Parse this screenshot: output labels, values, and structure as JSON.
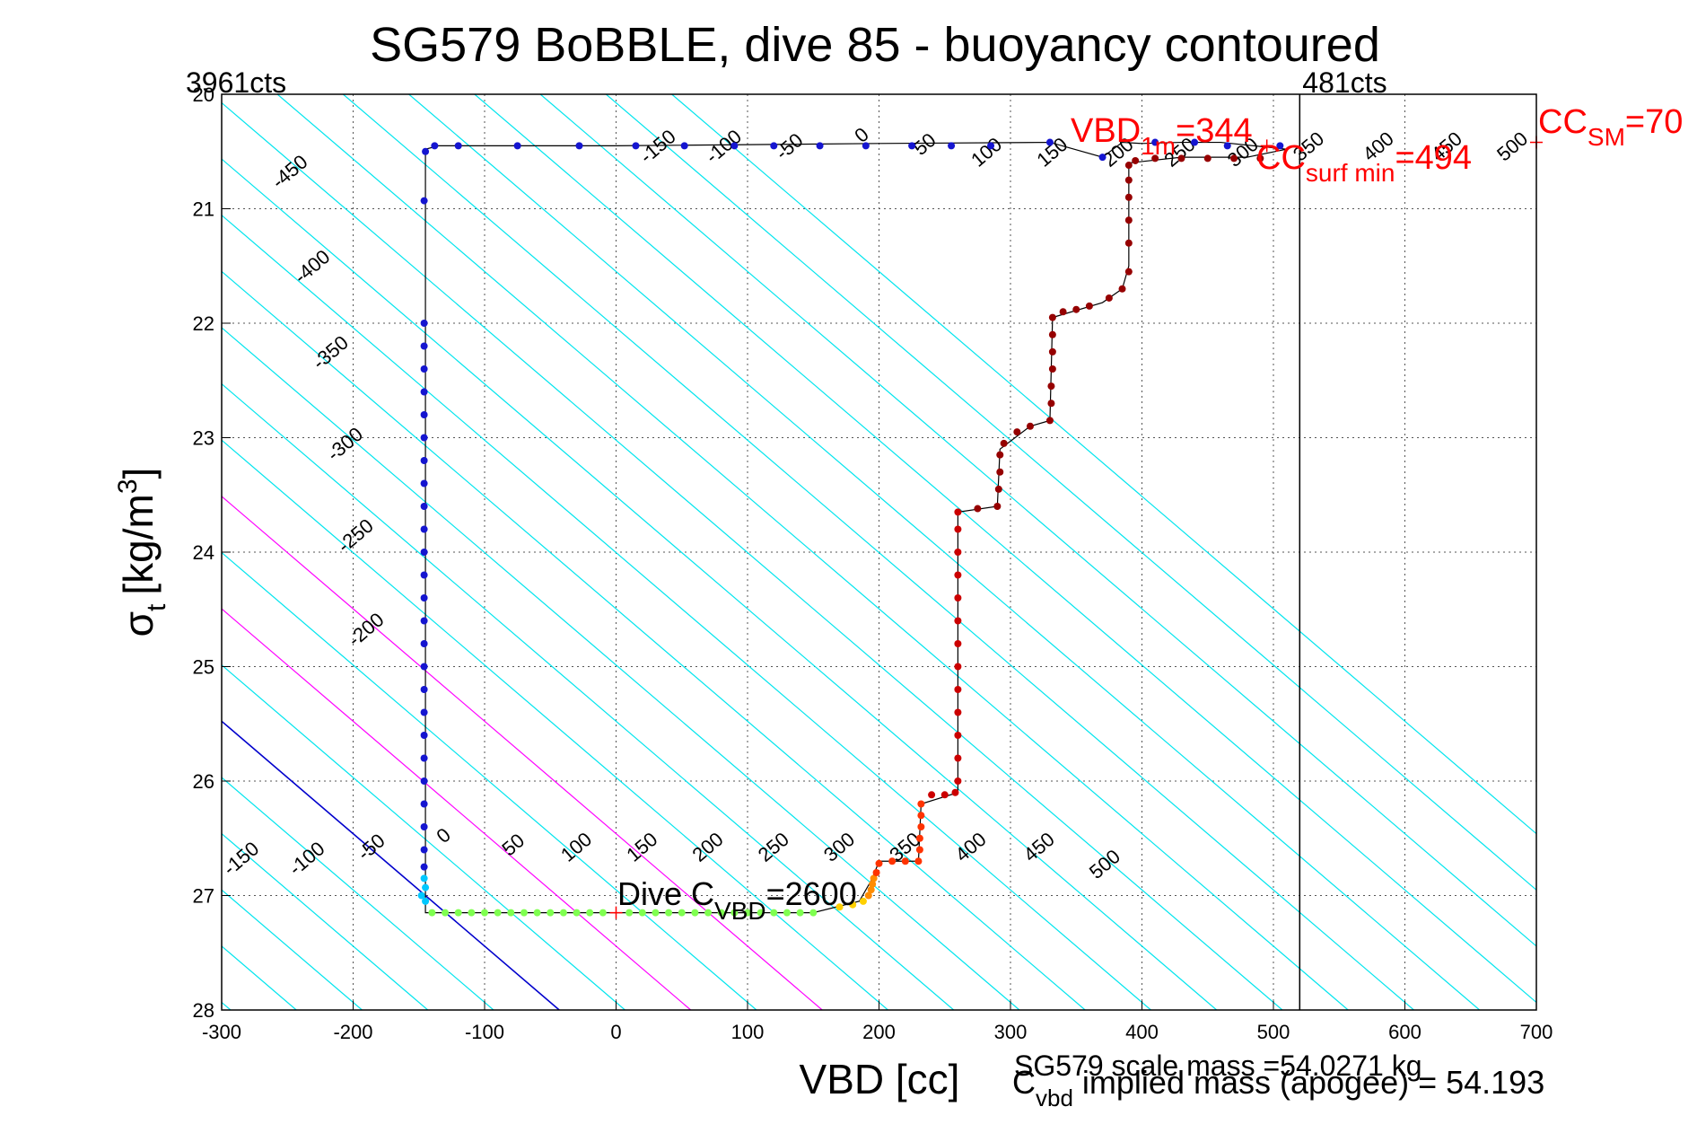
{
  "chart_data": {
    "type": "scatter",
    "title": "SG579 BoBBLE, dive 85 - buoyancy contoured",
    "xlabel": "VBD [cc]",
    "ylabel_main": "σ",
    "ylabel_sub": "t",
    "ylabel_units": "[kg/m",
    "ylabel_sup": "3",
    "ylabel_close": "]",
    "xlim": [
      -300,
      700
    ],
    "ylim": [
      20,
      28
    ],
    "y_reversed": true,
    "grid": true,
    "xticks": [
      -300,
      -200,
      -100,
      0,
      100,
      200,
      300,
      400,
      500,
      600,
      700
    ],
    "yticks": [
      20,
      21,
      22,
      23,
      24,
      25,
      26,
      27,
      28
    ],
    "tick_labels_x": [
      "-300",
      "-200",
      "-100",
      "0",
      "100",
      "200",
      "300",
      "400",
      "500",
      "600",
      "700"
    ],
    "tick_labels_y": [
      "20",
      "21",
      "22",
      "23",
      "24",
      "25",
      "26",
      "27",
      "28"
    ],
    "buoyancy_contours": {
      "levels": [
        -450,
        -400,
        -350,
        -300,
        -250,
        -200,
        -150,
        -100,
        -50,
        0,
        50,
        100,
        150,
        200,
        250,
        300,
        350,
        400,
        450,
        500
      ],
      "slope_cc_per_sigma": 101.8,
      "zero_at_sigma27": -145,
      "spacing_cc": 50,
      "color_default": "#00e5ee",
      "color_zero": "#0000cc",
      "magenta_levels": [
        100,
        200
      ],
      "color_magenta": "#ff00ff",
      "upper_labels": [
        {
          "text": "-450",
          "x": -245,
          "y": 20.72
        },
        {
          "text": "-400",
          "x": -228,
          "y": 21.55
        },
        {
          "text": "-350",
          "x": -214,
          "y": 22.3
        },
        {
          "text": "-300",
          "x": -203,
          "y": 23.1
        },
        {
          "text": "-250",
          "x": -195,
          "y": 23.9
        },
        {
          "text": "-200",
          "x": -187,
          "y": 24.72
        },
        {
          "text": "-150",
          "x": 35,
          "y": 20.5
        },
        {
          "text": "-100",
          "x": 85,
          "y": 20.5
        },
        {
          "text": "-50",
          "x": 135,
          "y": 20.5
        },
        {
          "text": "0",
          "x": 190,
          "y": 20.4
        },
        {
          "text": "50",
          "x": 238,
          "y": 20.48
        },
        {
          "text": "100",
          "x": 285,
          "y": 20.55
        },
        {
          "text": "150",
          "x": 335,
          "y": 20.55
        },
        {
          "text": "200",
          "x": 385,
          "y": 20.55
        },
        {
          "text": "250",
          "x": 432,
          "y": 20.55
        },
        {
          "text": "300",
          "x": 480,
          "y": 20.55
        },
        {
          "text": "350",
          "x": 530,
          "y": 20.5
        },
        {
          "text": "400",
          "x": 583,
          "y": 20.5
        },
        {
          "text": "450",
          "x": 635,
          "y": 20.5
        },
        {
          "text": "500",
          "x": 685,
          "y": 20.5
        }
      ],
      "lower_labels": [
        {
          "text": "-150",
          "x": -282,
          "y": 26.72
        },
        {
          "text": "-100",
          "x": -232,
          "y": 26.72
        },
        {
          "text": "-50",
          "x": -183,
          "y": 26.62
        },
        {
          "text": "0",
          "x": -128,
          "y": 26.52
        },
        {
          "text": "50",
          "x": -75,
          "y": 26.6
        },
        {
          "text": "100",
          "x": -27,
          "y": 26.62
        },
        {
          "text": "150",
          "x": 23,
          "y": 26.62
        },
        {
          "text": "200",
          "x": 73,
          "y": 26.62
        },
        {
          "text": "250",
          "x": 123,
          "y": 26.62
        },
        {
          "text": "300",
          "x": 173,
          "y": 26.62
        },
        {
          "text": "350",
          "x": 223,
          "y": 26.62
        },
        {
          "text": "400",
          "x": 273,
          "y": 26.62
        },
        {
          "text": "450",
          "x": 325,
          "y": 26.62
        },
        {
          "text": "500",
          "x": 375,
          "y": 26.77
        }
      ]
    },
    "counts_lines": {
      "left": {
        "label": "3961cts",
        "x": -300
      },
      "right": {
        "label": "481cts",
        "x": 520
      }
    },
    "trajectory_line": [
      [
        -145,
        20.48
      ],
      [
        -145,
        27.05
      ],
      [
        -145,
        27.15
      ],
      [
        150,
        27.15
      ],
      [
        185,
        27.05
      ],
      [
        195,
        26.85
      ],
      [
        200,
        26.7
      ],
      [
        230,
        26.7
      ],
      [
        232,
        26.2
      ],
      [
        260,
        26.1
      ],
      [
        260,
        23.65
      ],
      [
        290,
        23.6
      ],
      [
        292,
        23.1
      ],
      [
        315,
        22.9
      ],
      [
        330,
        22.85
      ],
      [
        332,
        21.95
      ],
      [
        370,
        21.82
      ],
      [
        385,
        21.7
      ],
      [
        390,
        21.5
      ],
      [
        390,
        20.6
      ],
      [
        430,
        20.55
      ],
      [
        480,
        20.55
      ],
      [
        510,
        20.48
      ],
      [
        460,
        20.42
      ],
      [
        430,
        20.42
      ],
      [
        400,
        20.43
      ],
      [
        385,
        20.42
      ],
      [
        370,
        20.55
      ],
      [
        330,
        20.42
      ],
      [
        200,
        20.43
      ],
      [
        0,
        20.45
      ],
      [
        -135,
        20.45
      ],
      [
        -145,
        20.48
      ]
    ],
    "series": [
      {
        "color": "#1515d0",
        "points": [
          [
            -145,
            20.5
          ],
          [
            -138,
            20.45
          ],
          [
            -120,
            20.45
          ],
          [
            -75,
            20.45
          ],
          [
            -28,
            20.45
          ],
          [
            15,
            20.45
          ],
          [
            52,
            20.45
          ],
          [
            90,
            20.45
          ],
          [
            120,
            20.45
          ],
          [
            155,
            20.45
          ],
          [
            190,
            20.45
          ],
          [
            225,
            20.45
          ],
          [
            255,
            20.45
          ],
          [
            285,
            20.45
          ],
          [
            330,
            20.42
          ],
          [
            370,
            20.55
          ],
          [
            410,
            20.42
          ],
          [
            440,
            20.42
          ],
          [
            465,
            20.45
          ],
          [
            505,
            20.45
          ],
          [
            -146,
            20.93
          ],
          [
            -146,
            22.0
          ],
          [
            -146,
            22.2
          ],
          [
            -146,
            22.4
          ],
          [
            -146,
            22.6
          ],
          [
            -146,
            22.8
          ],
          [
            -146,
            23.0
          ],
          [
            -146,
            23.2
          ],
          [
            -146,
            23.4
          ],
          [
            -146,
            23.6
          ],
          [
            -146,
            23.8
          ],
          [
            -146,
            24.0
          ],
          [
            -146,
            24.2
          ],
          [
            -146,
            24.4
          ],
          [
            -146,
            24.6
          ],
          [
            -146,
            24.8
          ],
          [
            -146,
            25.0
          ],
          [
            -146,
            25.2
          ],
          [
            -146,
            25.4
          ],
          [
            -146,
            25.6
          ],
          [
            -146,
            25.8
          ],
          [
            -146,
            26.0
          ],
          [
            -146,
            26.2
          ],
          [
            -146,
            26.4
          ],
          [
            -146,
            26.6
          ],
          [
            -146,
            26.75
          ]
        ]
      },
      {
        "color": "#00c8ff",
        "points": [
          [
            -146,
            26.85
          ],
          [
            -145,
            26.93
          ],
          [
            -148,
            27.0
          ],
          [
            -145,
            27.05
          ]
        ]
      },
      {
        "color": "#7fff50",
        "points": [
          [
            -140,
            27.15
          ],
          [
            -130,
            27.15
          ],
          [
            -120,
            27.15
          ],
          [
            -110,
            27.15
          ],
          [
            -100,
            27.15
          ],
          [
            -90,
            27.15
          ],
          [
            -80,
            27.15
          ],
          [
            -70,
            27.15
          ],
          [
            -60,
            27.15
          ],
          [
            -50,
            27.15
          ],
          [
            -40,
            27.15
          ],
          [
            -30,
            27.15
          ],
          [
            -20,
            27.15
          ],
          [
            -10,
            27.15
          ],
          [
            10,
            27.15
          ],
          [
            20,
            27.15
          ],
          [
            30,
            27.15
          ],
          [
            40,
            27.15
          ],
          [
            50,
            27.15
          ],
          [
            60,
            27.15
          ],
          [
            70,
            27.15
          ],
          [
            80,
            27.15
          ],
          [
            90,
            27.15
          ],
          [
            100,
            27.15
          ],
          [
            110,
            27.15
          ],
          [
            120,
            27.15
          ],
          [
            130,
            27.15
          ],
          [
            140,
            27.15
          ],
          [
            150,
            27.15
          ]
        ]
      },
      {
        "color": "#ffd000",
        "points": [
          [
            170,
            27.1
          ],
          [
            180,
            27.08
          ],
          [
            188,
            27.05
          ]
        ]
      },
      {
        "color": "#ff8c00",
        "points": [
          [
            192,
            27.0
          ],
          [
            194,
            26.95
          ],
          [
            195,
            26.9
          ],
          [
            196,
            26.85
          ]
        ]
      },
      {
        "color": "#ff3300",
        "points": [
          [
            198,
            26.8
          ],
          [
            200,
            26.72
          ],
          [
            210,
            26.7
          ],
          [
            220,
            26.7
          ],
          [
            230,
            26.7
          ],
          [
            231,
            26.6
          ],
          [
            231,
            26.5
          ],
          [
            232,
            26.4
          ],
          [
            232,
            26.3
          ],
          [
            232,
            26.2
          ]
        ]
      },
      {
        "color": "#cc0000",
        "points": [
          [
            240,
            26.12
          ],
          [
            250,
            26.12
          ],
          [
            258,
            26.1
          ],
          [
            260,
            26.0
          ],
          [
            260,
            25.8
          ],
          [
            260,
            25.6
          ],
          [
            260,
            25.4
          ],
          [
            260,
            25.2
          ],
          [
            260,
            25.0
          ],
          [
            260,
            24.8
          ],
          [
            260,
            24.6
          ],
          [
            260,
            24.4
          ],
          [
            260,
            24.2
          ],
          [
            260,
            24.0
          ],
          [
            260,
            23.8
          ],
          [
            260,
            23.65
          ]
        ]
      },
      {
        "color": "#960000",
        "points": [
          [
            275,
            23.62
          ],
          [
            290,
            23.6
          ],
          [
            291,
            23.45
          ],
          [
            292,
            23.3
          ],
          [
            292,
            23.15
          ],
          [
            295,
            23.05
          ],
          [
            305,
            22.95
          ],
          [
            315,
            22.9
          ],
          [
            330,
            22.85
          ],
          [
            331,
            22.7
          ],
          [
            331,
            22.55
          ],
          [
            332,
            22.4
          ],
          [
            332,
            22.25
          ],
          [
            332,
            22.1
          ],
          [
            332,
            21.95
          ],
          [
            340,
            21.9
          ],
          [
            350,
            21.88
          ],
          [
            360,
            21.85
          ],
          [
            375,
            21.78
          ],
          [
            385,
            21.7
          ],
          [
            390,
            21.55
          ],
          [
            390,
            21.3
          ],
          [
            390,
            21.1
          ],
          [
            390,
            20.9
          ],
          [
            390,
            20.75
          ],
          [
            390,
            20.62
          ],
          [
            395,
            20.58
          ],
          [
            410,
            20.56
          ],
          [
            430,
            20.56
          ],
          [
            450,
            20.56
          ],
          [
            470,
            20.56
          ],
          [
            490,
            20.56
          ]
        ]
      }
    ],
    "markers": [
      {
        "label": "VBD_1m_marker",
        "x": 495,
        "y": 20.45,
        "color": "#ff0000"
      },
      {
        "label": "CC_SM_marker",
        "x": 700,
        "y": 20.42,
        "color": "#ff0000"
      },
      {
        "label": "dive_cvbd_marker",
        "x": 0,
        "y": 27.15,
        "color": "#ff0000"
      }
    ],
    "annotations": {
      "vbd1m_main": "VBD",
      "vbd1m_sub": "1m",
      "vbd1m_value": "=344",
      "ccsurf_main": "CC",
      "ccsurf_sub": "surf min",
      "ccsurf_value": "=494",
      "ccsm_main": "CC",
      "ccsm_sub": "SM",
      "ccsm_value": "=70",
      "dive_main": "Dive C",
      "dive_sub": "VBD",
      "dive_value": "=2600",
      "scale_mass": "SG579 scale mass =54.0271 kg",
      "implied_main": "C",
      "implied_sub": "vbd",
      "implied_text": " implied mass (apogee) = 54.193"
    }
  }
}
